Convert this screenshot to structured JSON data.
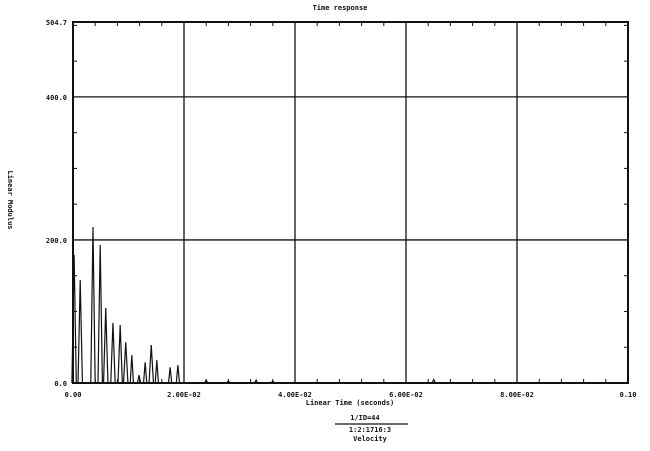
{
  "chart_data": {
    "type": "line",
    "title": "Time response",
    "xlabel": "Linear Time (seconds)",
    "ylabel": "Linear Modulus",
    "xlim": [
      0,
      0.1
    ],
    "ylim": [
      0,
      504.7
    ],
    "x_ticks": [
      0,
      0.02,
      0.04,
      0.06,
      0.08,
      0.1
    ],
    "x_tick_labels": [
      "0.00",
      "2.00E-02",
      "4.00E-02",
      "6.00E-02",
      "8.00E-02",
      "0.10"
    ],
    "y_ticks": [
      0,
      200,
      400,
      504.7
    ],
    "y_tick_labels": [
      "0.0",
      "200.0",
      "400.0",
      "504.7"
    ],
    "grid": true,
    "line_color": "#111111",
    "peaks": [
      [
        0.0002,
        179
      ],
      [
        0.0013,
        144
      ],
      [
        0.0036,
        218
      ],
      [
        0.0049,
        193
      ],
      [
        0.0059,
        105
      ],
      [
        0.0072,
        84
      ],
      [
        0.0085,
        81
      ],
      [
        0.0095,
        57
      ],
      [
        0.0106,
        39
      ],
      [
        0.0119,
        11
      ],
      [
        0.013,
        29
      ],
      [
        0.0141,
        53
      ],
      [
        0.0151,
        32
      ],
      [
        0.0175,
        22
      ],
      [
        0.0189,
        25
      ],
      [
        0.024,
        4
      ],
      [
        0.028,
        3
      ],
      [
        0.033,
        4
      ],
      [
        0.036,
        3
      ],
      [
        0.065,
        5
      ]
    ],
    "footer": {
      "id": "1/ID=44",
      "trace": "1:2:1716:3",
      "quantity": "Velocity"
    }
  }
}
